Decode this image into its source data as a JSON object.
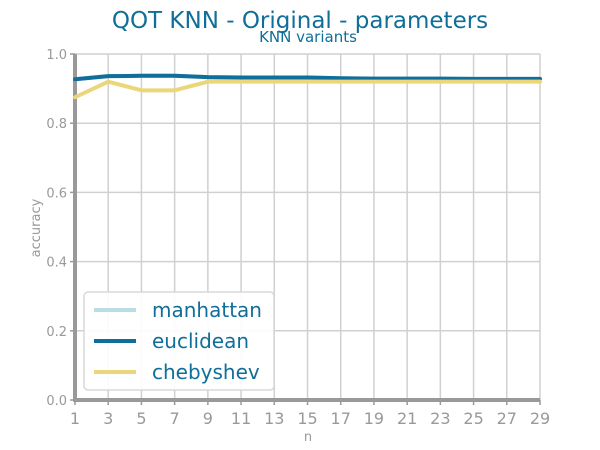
{
  "chart_data": {
    "type": "line",
    "title": "QOT KNN - Original - parameters",
    "subtitle": "KNN variants",
    "xlabel": "n",
    "ylabel": "accuracy",
    "xlim": [
      1,
      29
    ],
    "ylim": [
      0.0,
      1.0
    ],
    "x_ticks": [
      "1",
      "3",
      "5",
      "7",
      "9",
      "11",
      "13",
      "15",
      "17",
      "19",
      "21",
      "23",
      "25",
      "27",
      "29"
    ],
    "y_ticks": [
      "0.0",
      "0.2",
      "0.4",
      "0.6",
      "0.8",
      "1.0"
    ],
    "grid": true,
    "legend_position": "bottom-left",
    "x": [
      1,
      3,
      5,
      7,
      9,
      11,
      13,
      15,
      17,
      19,
      21,
      23,
      25,
      27,
      29
    ],
    "series": [
      {
        "name": "manhattan",
        "color": "#b8dde5",
        "values": [
          0.927,
          0.936,
          0.937,
          0.937,
          0.933,
          0.932,
          0.932,
          0.932,
          0.93,
          0.929,
          0.929,
          0.929,
          0.928,
          0.928,
          0.928
        ]
      },
      {
        "name": "euclidean",
        "color": "#106e9a",
        "values": [
          0.927,
          0.936,
          0.937,
          0.937,
          0.933,
          0.932,
          0.932,
          0.932,
          0.93,
          0.929,
          0.929,
          0.929,
          0.928,
          0.928,
          0.928
        ]
      },
      {
        "name": "chebyshev",
        "color": "#ecd67a",
        "values": [
          0.875,
          0.92,
          0.895,
          0.895,
          0.92,
          0.92,
          0.92,
          0.92,
          0.92,
          0.92,
          0.92,
          0.92,
          0.92,
          0.92,
          0.92
        ]
      }
    ],
    "colors": {
      "title": "#106e9a",
      "axis": "#999999",
      "grid": "#d0d0d0",
      "tick_text": "#999999"
    }
  }
}
